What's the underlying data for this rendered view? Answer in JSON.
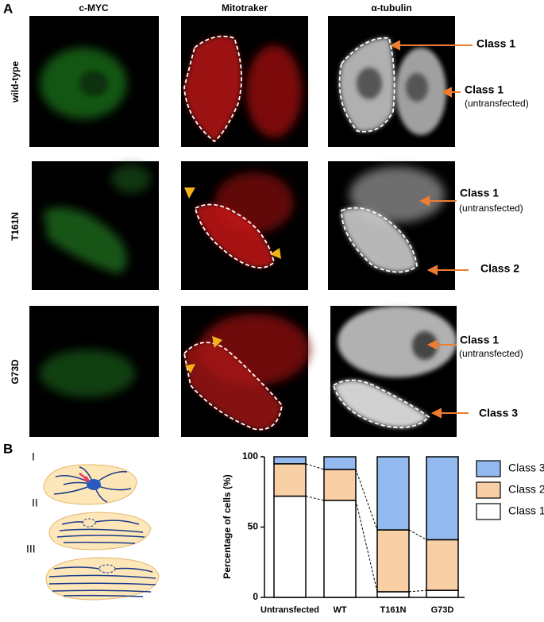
{
  "panel_a": {
    "label": "A",
    "columns": [
      "c-MYC",
      "Mitotraker",
      "α-tubulin"
    ],
    "rows": [
      "wild-type",
      "T161N",
      "G73D"
    ],
    "annotations": [
      [
        {
          "class": "Class 1"
        },
        {
          "class": "Class 1",
          "note": "(untransfected)"
        }
      ],
      [
        {
          "class": "Class 1",
          "note": "(untransfected)"
        },
        {
          "class": "Class 2"
        }
      ],
      [
        {
          "class": "Class 1",
          "note": "(untransfected)"
        },
        {
          "class": "Class 3"
        }
      ]
    ]
  },
  "panel_b": {
    "label": "B",
    "diagram_labels": [
      "I",
      "II",
      "III"
    ]
  },
  "chart_data": {
    "type": "stacked_bar",
    "y_label": "Percentage of cells (%)",
    "categories": [
      "Untransfected",
      "WT",
      "T161N",
      "G73D"
    ],
    "series": [
      {
        "name": "Class 1",
        "color": "#ffffff",
        "values": [
          72,
          69,
          4,
          5
        ]
      },
      {
        "name": "Class 2",
        "color": "#f9cfa6",
        "values": [
          23,
          22,
          44,
          36
        ]
      },
      {
        "name": "Class 3",
        "color": "#93b9ee",
        "values": [
          5,
          9,
          52,
          59
        ]
      }
    ],
    "ylim": [
      0,
      100
    ],
    "yticks": [
      0,
      50,
      100
    ],
    "grid": false,
    "connectors": true
  }
}
